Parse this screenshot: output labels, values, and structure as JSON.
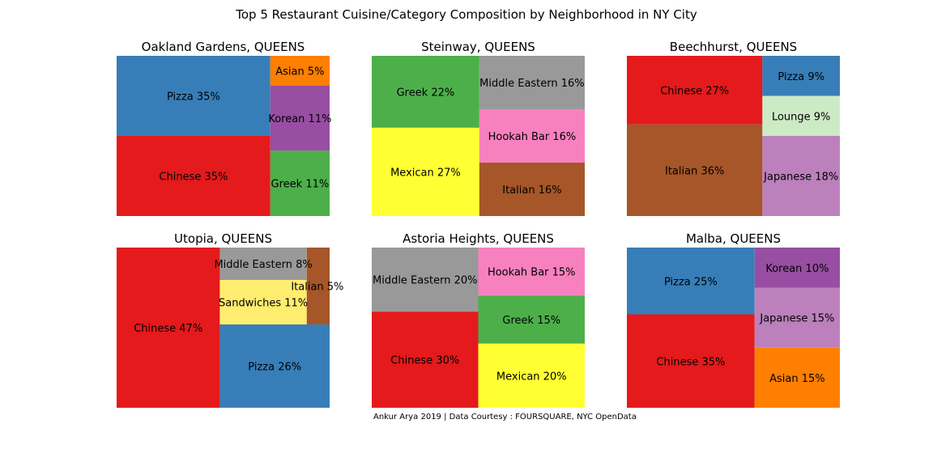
{
  "title": "Top 5 Restaurant Cuisine/Category Composition by Neighborhood in NY City",
  "credit": "Ankur Arya 2019 | Data Courtesy : FOURSQUARE, NYC OpenData",
  "colors": {
    "Pizza": "#377eb8",
    "Chinese": "#e41a1c",
    "Asian": "#ff7f00",
    "Korean": "#984ea3",
    "Greek": "#4daf4a",
    "Middle Eastern": "#999999",
    "Hookah Bar": "#f781bf",
    "Mexican": "#ffff33",
    "Italian": "#a65628",
    "Lounge": "#ccebc5",
    "Japanese": "#bc80bd",
    "Sandwiches": "#ffed6f"
  },
  "chart_data": [
    {
      "type": "treemap",
      "title": "Oakland Gardens, QUEENS",
      "items": [
        {
          "label": "Pizza 35%",
          "category": "Pizza",
          "value": 35
        },
        {
          "label": "Chinese 35%",
          "category": "Chinese",
          "value": 35
        },
        {
          "label": "Asian 5%",
          "category": "Asian",
          "value": 5
        },
        {
          "label": "Korean 11%",
          "category": "Korean",
          "value": 11
        },
        {
          "label": "Greek 11%",
          "category": "Greek",
          "value": 11
        }
      ]
    },
    {
      "type": "treemap",
      "title": "Steinway, QUEENS",
      "items": [
        {
          "label": "Greek 22%",
          "category": "Greek",
          "value": 22
        },
        {
          "label": "Mexican 27%",
          "category": "Mexican",
          "value": 27
        },
        {
          "label": "Middle Eastern 16%",
          "category": "Middle Eastern",
          "value": 16
        },
        {
          "label": "Hookah Bar 16%",
          "category": "Hookah Bar",
          "value": 16
        },
        {
          "label": "Italian 16%",
          "category": "Italian",
          "value": 16
        }
      ]
    },
    {
      "type": "treemap",
      "title": "Beechhurst, QUEENS",
      "items": [
        {
          "label": "Chinese 27%",
          "category": "Chinese",
          "value": 27
        },
        {
          "label": "Italian 36%",
          "category": "Italian",
          "value": 36
        },
        {
          "label": "Pizza 9%",
          "category": "Pizza",
          "value": 9
        },
        {
          "label": "Lounge 9%",
          "category": "Lounge",
          "value": 9
        },
        {
          "label": "Japanese 18%",
          "category": "Japanese",
          "value": 18
        }
      ]
    },
    {
      "type": "treemap",
      "title": "Utopia, QUEENS",
      "items": [
        {
          "label": "Chinese 47%",
          "category": "Chinese",
          "value": 47
        },
        {
          "label": "Middle Eastern 8%",
          "category": "Middle Eastern",
          "value": 8
        },
        {
          "label": "Italian 5%",
          "category": "Italian",
          "value": 5
        },
        {
          "label": "Sandwiches 11%",
          "category": "Sandwiches",
          "value": 11
        },
        {
          "label": "Pizza 26%",
          "category": "Pizza",
          "value": 26
        }
      ]
    },
    {
      "type": "treemap",
      "title": "Astoria Heights, QUEENS",
      "items": [
        {
          "label": "Middle Eastern 20%",
          "category": "Middle Eastern",
          "value": 20
        },
        {
          "label": "Chinese 30%",
          "category": "Chinese",
          "value": 30
        },
        {
          "label": "Hookah Bar 15%",
          "category": "Hookah Bar",
          "value": 15
        },
        {
          "label": "Greek 15%",
          "category": "Greek",
          "value": 15
        },
        {
          "label": "Mexican 20%",
          "category": "Mexican",
          "value": 20
        }
      ]
    },
    {
      "type": "treemap",
      "title": "Malba, QUEENS",
      "items": [
        {
          "label": "Pizza 25%",
          "category": "Pizza",
          "value": 25
        },
        {
          "label": "Chinese 35%",
          "category": "Chinese",
          "value": 35
        },
        {
          "label": "Korean 10%",
          "category": "Korean",
          "value": 10
        },
        {
          "label": "Japanese 15%",
          "category": "Japanese",
          "value": 15
        },
        {
          "label": "Asian 15%",
          "category": "Asian",
          "value": 15
        }
      ]
    }
  ]
}
